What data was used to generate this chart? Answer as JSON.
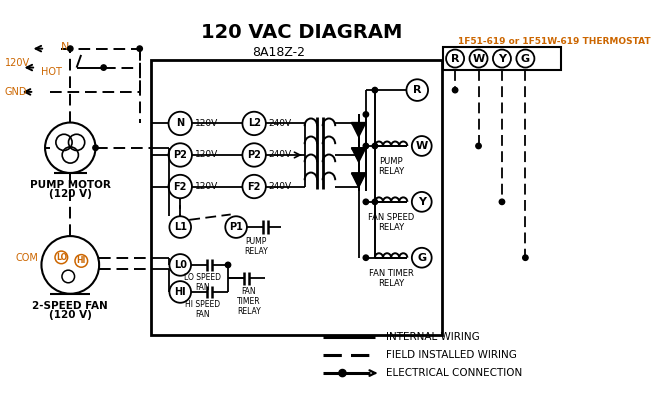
{
  "title": "120 VAC DIAGRAM",
  "title_fontsize": 14,
  "title_fontweight": "bold",
  "bg_color": "#ffffff",
  "line_color": "#000000",
  "orange_color": "#cc6600",
  "thermostat_label": "1F51-619 or 1F51W-619 THERMOSTAT",
  "control_box_label": "8A18Z-2",
  "legend_items": [
    {
      "label": "INTERNAL WIRING",
      "style": "solid"
    },
    {
      "label": "FIELD INSTALLED WIRING",
      "style": "dashed"
    },
    {
      "label": "ELECTRICAL CONNECTION",
      "style": "dot_arrow"
    }
  ],
  "terminal_labels": [
    "R",
    "W",
    "Y",
    "G"
  ],
  "fig_w": 6.7,
  "fig_h": 4.19,
  "dpi": 100
}
